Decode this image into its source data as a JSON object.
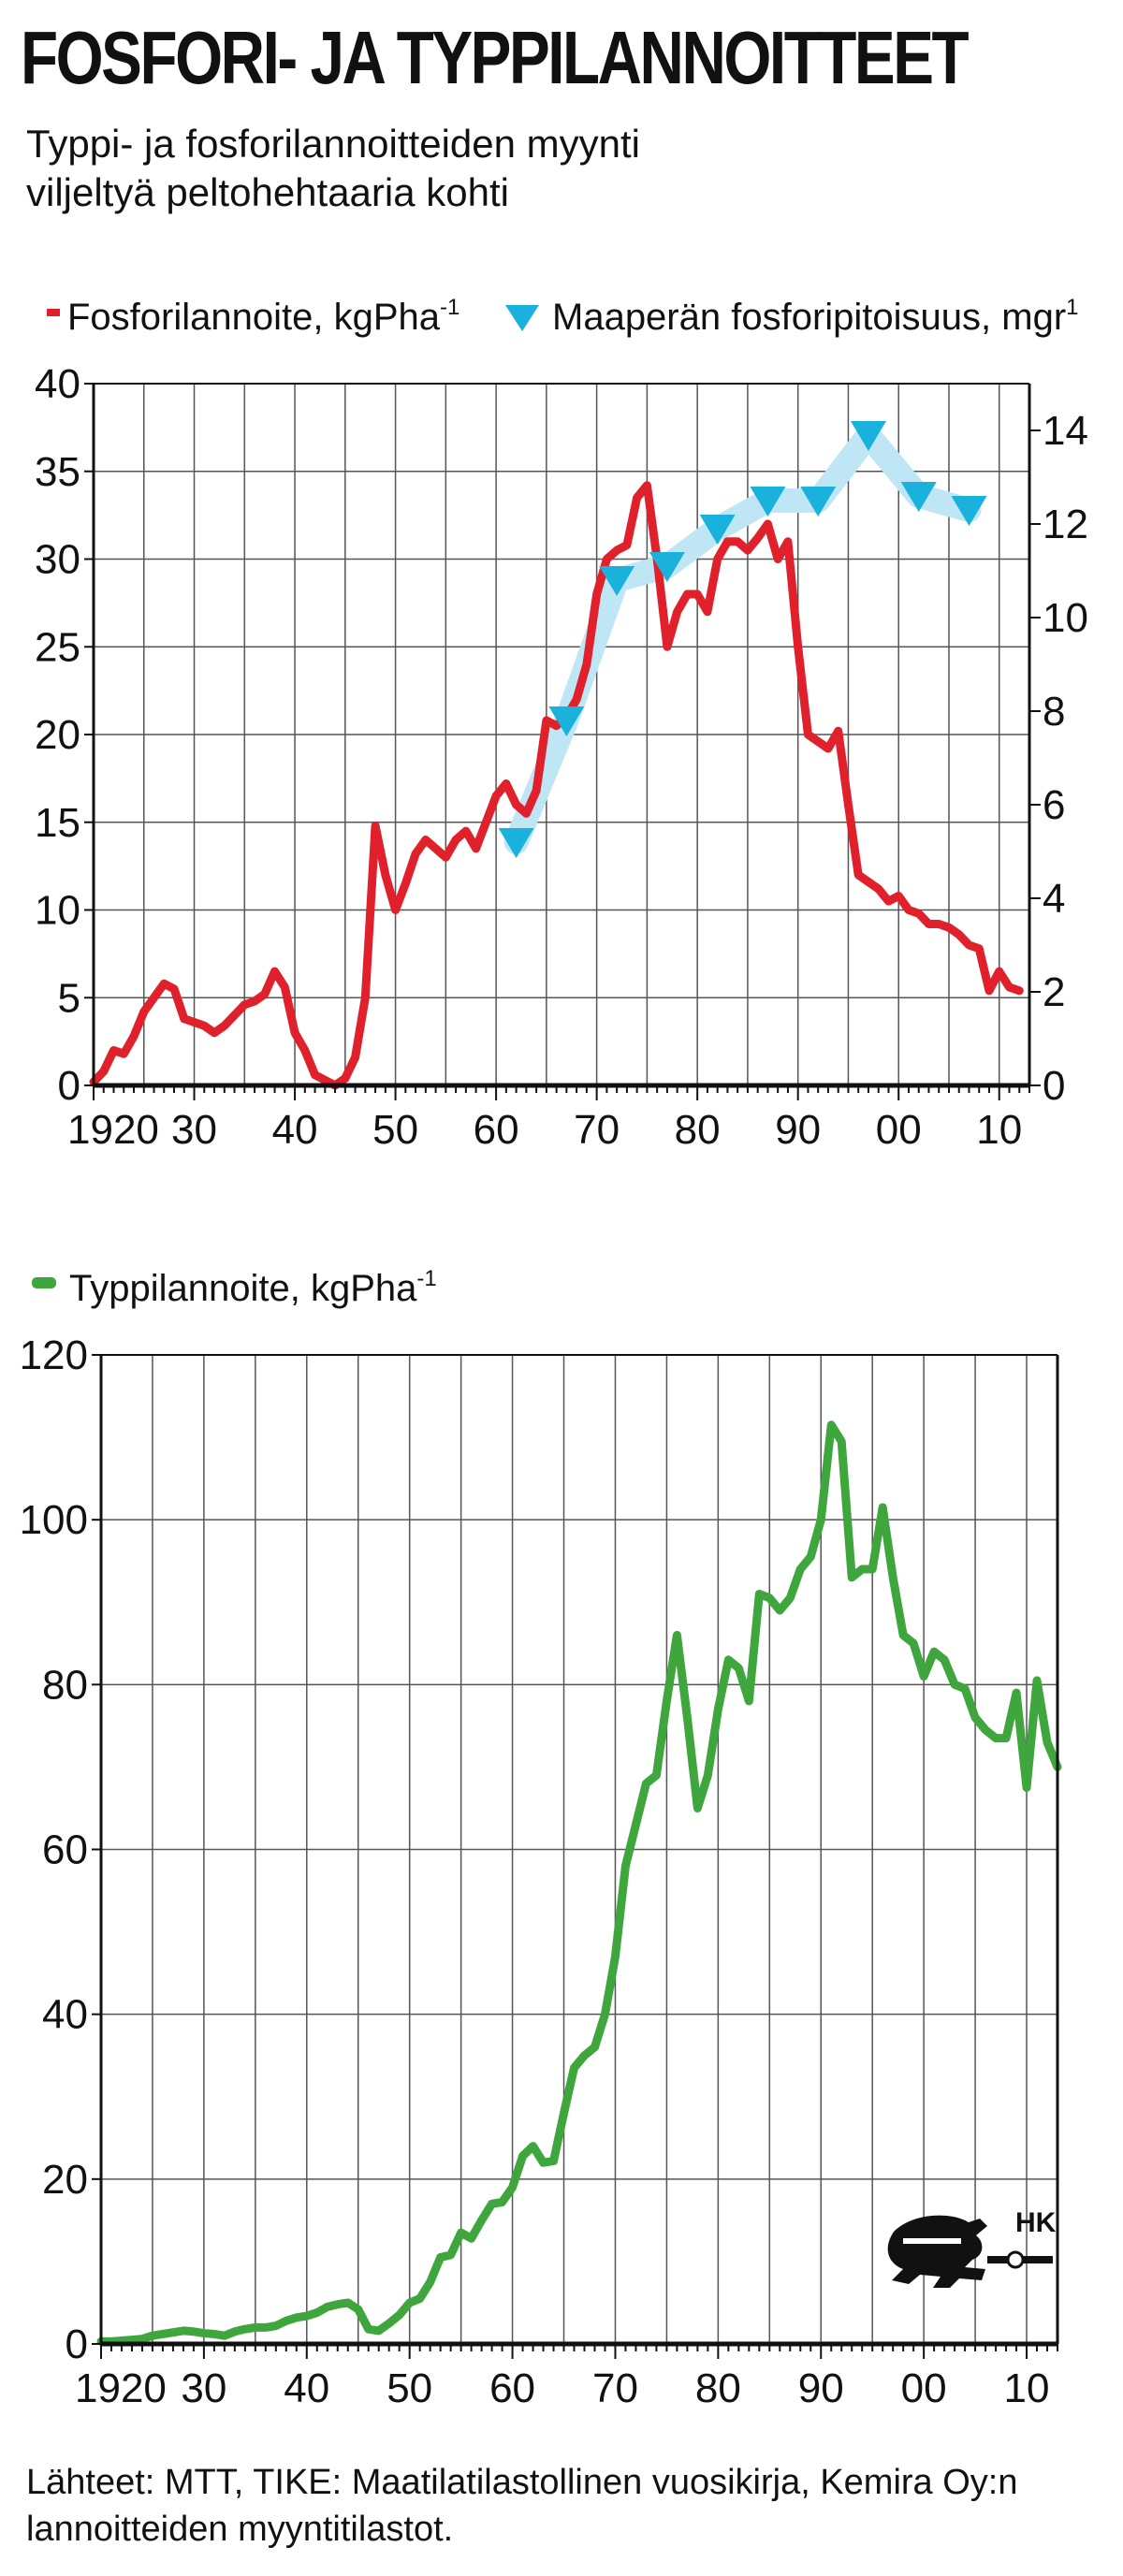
{
  "header": {
    "title": "FOSFORI- JA TYPPILANNOITTEET",
    "subtitle_line1": "Typpi- ja fosforilannoitteiden myynti",
    "subtitle_line2": "viljeltyä peltohehtaaria kohti"
  },
  "colors": {
    "phosphorus": "#e0212b",
    "soil": "#1ab2dc",
    "soil_band": "#bfe6f4",
    "nitrogen": "#3ea63d",
    "grid": "#555555"
  },
  "source": {
    "line1": "Lähteet: MTT, TIKE: Maatilatilastollinen vuosikirja, Kemira Oy:n",
    "line2": "lannoitteiden myyntitilastot."
  },
  "logo": {
    "text": "HK",
    "icon": "lion-emblem-icon"
  },
  "chart_data": [
    {
      "type": "line",
      "xlim": [
        1920,
        2013
      ],
      "ylim": [
        0,
        40
      ],
      "y2lim": [
        0,
        15
      ],
      "x_ticks": [
        1920,
        1930,
        1940,
        1950,
        1960,
        1970,
        1980,
        1990,
        2000,
        2010
      ],
      "x_tick_labels": [
        "1920",
        "30",
        "40",
        "50",
        "60",
        "70",
        "80",
        "90",
        "00",
        "10"
      ],
      "y_ticks": [
        0,
        5,
        10,
        15,
        20,
        25,
        30,
        35,
        40
      ],
      "y_tick_labels": [
        "0",
        "5",
        "10",
        "15",
        "20",
        "25",
        "30",
        "35",
        "40"
      ],
      "y2_ticks": [
        0,
        2,
        4,
        6,
        8,
        10,
        12,
        14
      ],
      "y2_tick_labels": [
        "0",
        "2",
        "4",
        "6",
        "8",
        "10",
        "12",
        "14"
      ],
      "grid": true,
      "legend_position": "top",
      "series": [
        {
          "name": "Fosforilannoite, kgPha",
          "legend_sup": "-1",
          "axis": "left",
          "style": "line",
          "x": [
            1920,
            1921,
            1922,
            1923,
            1924,
            1925,
            1926,
            1927,
            1928,
            1929,
            1930,
            1931,
            1932,
            1933,
            1934,
            1935,
            1936,
            1937,
            1938,
            1939,
            1940,
            1941,
            1942,
            1943,
            1944,
            1945,
            1946,
            1947,
            1948,
            1949,
            1950,
            1951,
            1952,
            1953,
            1954,
            1955,
            1956,
            1957,
            1958,
            1959,
            1960,
            1961,
            1962,
            1963,
            1964,
            1965,
            1966,
            1967,
            1968,
            1969,
            1970,
            1971,
            1972,
            1973,
            1974,
            1975,
            1976,
            1977,
            1978,
            1979,
            1980,
            1981,
            1982,
            1983,
            1984,
            1985,
            1986,
            1987,
            1988,
            1989,
            1990,
            1991,
            1992,
            1993,
            1994,
            1995,
            1996,
            1997,
            1998,
            1999,
            2000,
            2001,
            2002,
            2003,
            2004,
            2005,
            2006,
            2007,
            2008,
            2009,
            2010,
            2011,
            2012
          ],
          "values": [
            0.2,
            0.8,
            2.0,
            1.8,
            2.8,
            4.2,
            5.0,
            5.8,
            5.5,
            3.8,
            3.6,
            3.4,
            3.0,
            3.4,
            4.0,
            4.6,
            4.8,
            5.2,
            6.5,
            5.6,
            3.0,
            2.0,
            0.6,
            0.3,
            0.0,
            0.4,
            1.6,
            5.0,
            14.8,
            12.0,
            10.0,
            11.5,
            13.2,
            14.0,
            13.5,
            13.0,
            14.0,
            14.5,
            13.5,
            15.0,
            16.5,
            17.2,
            16.0,
            15.5,
            16.8,
            20.8,
            20.5,
            21.0,
            22.0,
            24.0,
            28.0,
            30.0,
            30.5,
            30.8,
            33.5,
            34.2,
            30.0,
            25.0,
            27.0,
            28.0,
            28.0,
            27.0,
            30.0,
            31.0,
            31.0,
            30.5,
            31.2,
            32.0,
            30.0,
            31.0,
            25.0,
            20.0,
            19.6,
            19.2,
            20.2,
            16.0,
            12.0,
            11.6,
            11.2,
            10.5,
            10.8,
            10.0,
            9.8,
            9.2,
            9.2,
            9.0,
            8.6,
            8.0,
            7.8,
            5.4,
            6.5,
            5.6,
            5.4
          ]
        },
        {
          "name": "Maaperän fosforipitoisuus, mgr",
          "legend_sup": "1",
          "axis": "right",
          "style": "markers-with-band",
          "x": [
            1962,
            1967,
            1972,
            1977,
            1982,
            1987,
            1992,
            1997,
            2002,
            2007
          ],
          "values": [
            5.2,
            7.8,
            10.8,
            11.1,
            11.9,
            12.5,
            12.5,
            13.9,
            12.6,
            12.3
          ]
        }
      ]
    },
    {
      "type": "line",
      "xlim": [
        1920,
        2013
      ],
      "ylim": [
        0,
        120
      ],
      "x_ticks": [
        1920,
        1930,
        1940,
        1950,
        1960,
        1970,
        1980,
        1990,
        2000,
        2010
      ],
      "x_tick_labels": [
        "1920",
        "30",
        "40",
        "50",
        "60",
        "70",
        "80",
        "90",
        "00",
        "10"
      ],
      "y_ticks": [
        0,
        20,
        40,
        60,
        80,
        100,
        120
      ],
      "y_tick_labels": [
        "0",
        "20",
        "40",
        "60",
        "80",
        "100",
        "120"
      ],
      "grid": true,
      "legend_position": "top",
      "series": [
        {
          "name": "Typpilannoite, kgPha",
          "legend_sup": "-1",
          "axis": "left",
          "style": "line",
          "x": [
            1920,
            1921,
            1922,
            1923,
            1924,
            1925,
            1926,
            1927,
            1928,
            1929,
            1930,
            1931,
            1932,
            1933,
            1934,
            1935,
            1936,
            1937,
            1938,
            1939,
            1940,
            1941,
            1942,
            1943,
            1944,
            1945,
            1946,
            1947,
            1948,
            1949,
            1950,
            1951,
            1952,
            1953,
            1954,
            1955,
            1956,
            1957,
            1958,
            1959,
            1960,
            1961,
            1962,
            1963,
            1964,
            1965,
            1966,
            1967,
            1968,
            1969,
            1970,
            1971,
            1972,
            1973,
            1974,
            1975,
            1976,
            1977,
            1978,
            1979,
            1980,
            1981,
            1982,
            1983,
            1984,
            1985,
            1986,
            1987,
            1988,
            1989,
            1990,
            1991,
            1992,
            1993,
            1994,
            1995,
            1996,
            1997,
            1998,
            1999,
            2000,
            2001,
            2002,
            2003,
            2004,
            2005,
            2006,
            2007,
            2008,
            2009,
            2010,
            2011,
            2012,
            2013
          ],
          "values": [
            0.3,
            0.3,
            0.4,
            0.5,
            0.6,
            1.0,
            1.2,
            1.4,
            1.6,
            1.5,
            1.3,
            1.2,
            1.0,
            1.5,
            1.8,
            2.0,
            2.0,
            2.2,
            2.8,
            3.2,
            3.4,
            3.8,
            4.5,
            4.8,
            5.0,
            4.2,
            1.8,
            1.6,
            2.5,
            3.5,
            5.0,
            5.5,
            7.5,
            10.5,
            10.8,
            13.5,
            12.8,
            15.0,
            17.0,
            17.2,
            19.0,
            22.8,
            24.0,
            22.0,
            22.2,
            28.0,
            33.5,
            35.0,
            36.0,
            40.0,
            47.0,
            58.0,
            63.0,
            68.0,
            69.0,
            78.0,
            86.0,
            76.0,
            65.0,
            69.0,
            77.0,
            83.0,
            82.0,
            78.0,
            91.0,
            90.5,
            89.0,
            90.5,
            94.0,
            95.5,
            100.0,
            111.5,
            109.5,
            93.0,
            94.0,
            94.0,
            101.5,
            93.0,
            86.0,
            85.0,
            81.0,
            84.0,
            83.0,
            80.0,
            79.5,
            76.0,
            74.5,
            73.5,
            73.5,
            79.0,
            67.5,
            80.5,
            73.0,
            70.0
          ]
        }
      ]
    }
  ]
}
